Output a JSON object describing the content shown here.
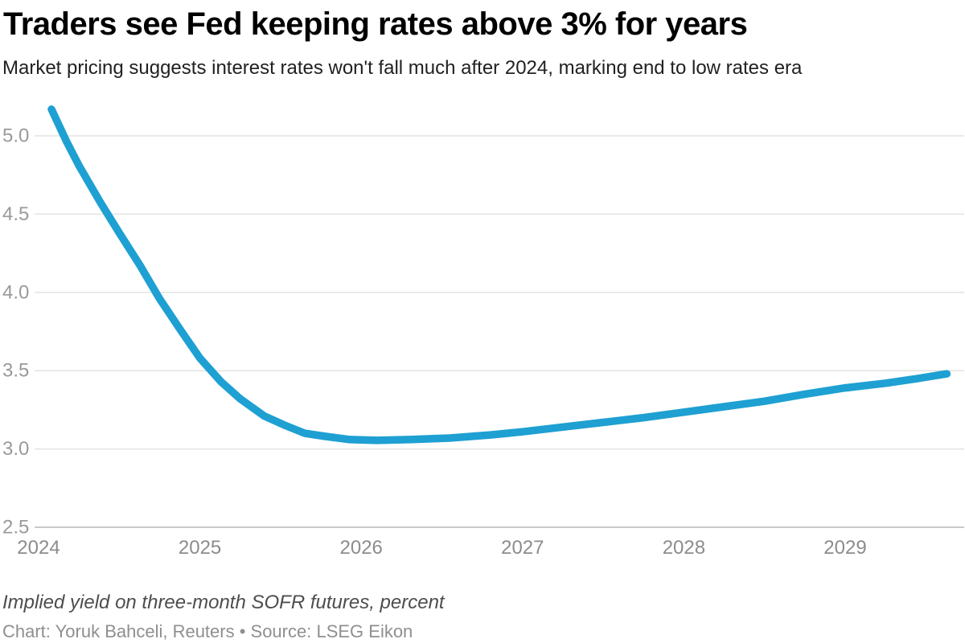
{
  "header": {
    "title": "Traders see Fed keeping rates above 3% for years",
    "subtitle": "Market pricing suggests interest rates won't fall much after 2024, marking end to low rates era"
  },
  "footer": {
    "note": "Implied yield on three-month SOFR futures, percent",
    "credit": "Chart: Yoruk Bahceli, Reuters • Source: LSEG Eikon"
  },
  "colors": {
    "line": "#1EA0D2",
    "gridline": "#E3E3E3",
    "baseline": "#C9C9C9",
    "title": "#000000",
    "subtitle": "#212121",
    "note": "#4D4D4D",
    "credit": "#8F8F8F"
  },
  "chart_data": {
    "type": "line",
    "title": "Traders see Fed keeping rates above 3% for years",
    "subtitle": "Market pricing suggests interest rates won't fall much after 2024, marking end to low rates era",
    "xlabel": "",
    "ylabel": "Implied yield on three-month SOFR futures, percent",
    "grid": "horizontal",
    "legend": "none",
    "xlim": [
      2023.78,
      2029.75
    ],
    "ylim": [
      2.5,
      5.25
    ],
    "x_axis": {
      "ticks": [
        2024,
        2025,
        2026,
        2027,
        2028,
        2029
      ],
      "tick_labels": [
        "2024",
        "2025",
        "2026",
        "2027",
        "2028",
        "2029"
      ]
    },
    "y_axis": {
      "ticks": [
        2.5,
        3.0,
        3.5,
        4.0,
        4.5,
        5.0
      ],
      "tick_labels": [
        "2.5",
        "3.0",
        "3.5",
        "4.0",
        "4.5",
        "5.0"
      ]
    },
    "series": [
      {
        "name": "Implied yield on three-month SOFR futures, percent",
        "points": [
          [
            2024.08,
            5.17
          ],
          [
            2024.17,
            4.97
          ],
          [
            2024.25,
            4.81
          ],
          [
            2024.38,
            4.58
          ],
          [
            2024.5,
            4.38
          ],
          [
            2024.63,
            4.17
          ],
          [
            2024.75,
            3.96
          ],
          [
            2024.88,
            3.76
          ],
          [
            2025.0,
            3.58
          ],
          [
            2025.13,
            3.43
          ],
          [
            2025.25,
            3.32
          ],
          [
            2025.4,
            3.21
          ],
          [
            2025.53,
            3.15
          ],
          [
            2025.65,
            3.1
          ],
          [
            2025.78,
            3.08
          ],
          [
            2025.93,
            3.06
          ],
          [
            2026.1,
            3.055
          ],
          [
            2026.3,
            3.06
          ],
          [
            2026.55,
            3.07
          ],
          [
            2026.8,
            3.09
          ],
          [
            2027.0,
            3.11
          ],
          [
            2027.25,
            3.14
          ],
          [
            2027.5,
            3.17
          ],
          [
            2027.75,
            3.2
          ],
          [
            2028.0,
            3.235
          ],
          [
            2028.25,
            3.27
          ],
          [
            2028.5,
            3.305
          ],
          [
            2028.75,
            3.35
          ],
          [
            2029.0,
            3.39
          ],
          [
            2029.25,
            3.42
          ],
          [
            2029.45,
            3.45
          ],
          [
            2029.63,
            3.48
          ]
        ]
      }
    ]
  }
}
